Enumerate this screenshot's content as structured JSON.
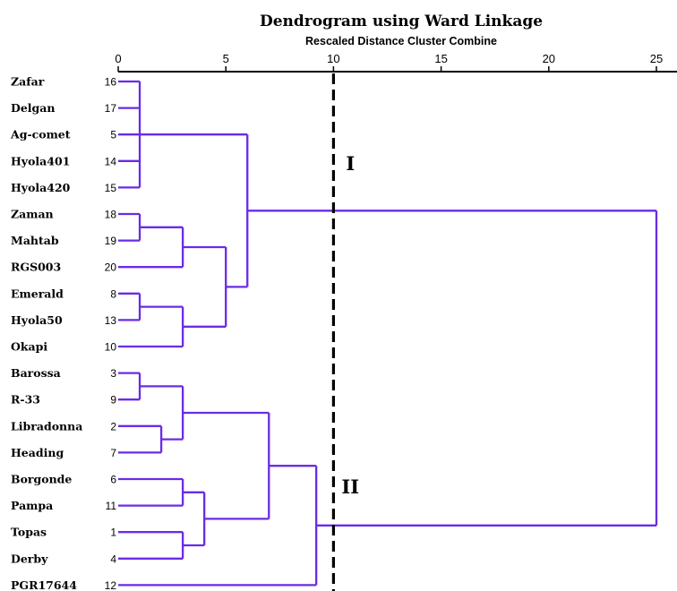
{
  "chart_data": {
    "type": "dendrogram",
    "title": "Dendrogram using Ward Linkage",
    "subtitle": "Rescaled Distance Cluster Combine",
    "xlim": [
      0,
      25
    ],
    "x_ticks": [
      "0",
      "5",
      "10",
      "15",
      "20",
      "25"
    ],
    "cut_line": 10,
    "leaves": [
      {
        "name": "Zafar",
        "id": "16"
      },
      {
        "name": "Delgan",
        "id": "17"
      },
      {
        "name": "Ag-comet",
        "id": "5"
      },
      {
        "name": "Hyola401",
        "id": "14"
      },
      {
        "name": "Hyola420",
        "id": "15"
      },
      {
        "name": "Zaman",
        "id": "18"
      },
      {
        "name": "Mahtab",
        "id": "19"
      },
      {
        "name": "RGS003",
        "id": "20"
      },
      {
        "name": "Emerald",
        "id": "8"
      },
      {
        "name": "Hyola50",
        "id": "13"
      },
      {
        "name": "Okapi",
        "id": "10"
      },
      {
        "name": "Barossa",
        "id": "3"
      },
      {
        "name": "R-33",
        "id": "9"
      },
      {
        "name": "Libradonna",
        "id": "2"
      },
      {
        "name": "Heading",
        "id": "7"
      },
      {
        "name": "Borgonde",
        "id": "6"
      },
      {
        "name": "Pampa",
        "id": "11"
      },
      {
        "name": "Topas",
        "id": "1"
      },
      {
        "name": "Derby",
        "id": "4"
      },
      {
        "name": "PGR17644",
        "id": "12"
      }
    ],
    "merges": [
      {
        "children": [
          "L0",
          "L1",
          "L2",
          "L3",
          "L4"
        ],
        "height": 1.0
      },
      {
        "children": [
          "L5",
          "L6"
        ],
        "height": 1.0
      },
      {
        "children": [
          "M1",
          "L7"
        ],
        "height": 3.0
      },
      {
        "children": [
          "L8",
          "L9"
        ],
        "height": 1.0
      },
      {
        "children": [
          "M3",
          "L10"
        ],
        "height": 3.0
      },
      {
        "children": [
          "M2",
          "M4"
        ],
        "height": 5.0
      },
      {
        "children": [
          "M0",
          "M5"
        ],
        "height": 6.0
      },
      {
        "children": [
          "L11",
          "L12"
        ],
        "height": 1.0
      },
      {
        "children": [
          "L13",
          "L14"
        ],
        "height": 2.0
      },
      {
        "children": [
          "M7",
          "M8"
        ],
        "height": 3.0
      },
      {
        "children": [
          "L15",
          "L16"
        ],
        "height": 3.0
      },
      {
        "children": [
          "L17",
          "L18"
        ],
        "height": 3.0
      },
      {
        "children": [
          "M10",
          "M11"
        ],
        "height": 4.0
      },
      {
        "children": [
          "M9",
          "M12"
        ],
        "height": 7.0
      },
      {
        "children": [
          "M13",
          "L19"
        ],
        "height": 9.2
      },
      {
        "children": [
          "M6",
          "M14"
        ],
        "height": 25.0
      }
    ],
    "cluster_labels": [
      {
        "text": "I"
      },
      {
        "text": "II"
      }
    ],
    "colors": {
      "link": "#6a2be6",
      "axis": "#000000",
      "cut_line": "#000000"
    }
  }
}
